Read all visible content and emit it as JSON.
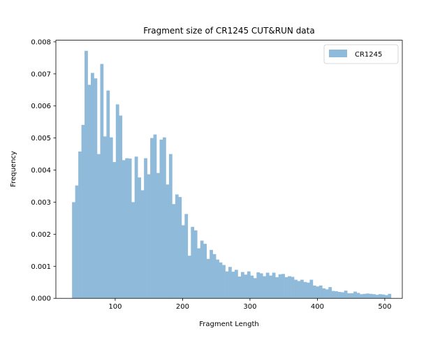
{
  "chart_data": {
    "type": "histogram",
    "title": "Fragment size of CR1245 CUT&RUN data",
    "xlabel": "Fragment Length",
    "ylabel": "Frequency",
    "xlim": [
      12,
      526
    ],
    "ylim": [
      0,
      0.00805
    ],
    "xticks": [
      100,
      200,
      300,
      400,
      500
    ],
    "xtick_labels": [
      "100",
      "200",
      "300",
      "400",
      "500"
    ],
    "yticks": [
      0,
      0.001,
      0.002,
      0.003,
      0.004,
      0.005,
      0.006,
      0.007,
      0.008
    ],
    "ytick_labels": [
      "0.000",
      "0.001",
      "0.002",
      "0.003",
      "0.004",
      "0.005",
      "0.006",
      "0.007",
      "0.008"
    ],
    "bin_start": 36,
    "bin_width": 4.64,
    "bar_color": "#8fbad9",
    "legend": {
      "position": "upper right",
      "entries": [
        "CR1245"
      ]
    },
    "series": [
      {
        "name": "CR1245",
        "values": [
          0.003,
          0.00352,
          0.00458,
          0.00541,
          0.00772,
          0.00666,
          0.00703,
          0.00686,
          0.0045,
          0.00731,
          0.00505,
          0.00648,
          0.00502,
          0.00425,
          0.00605,
          0.0057,
          0.00431,
          0.00437,
          0.00436,
          0.003,
          0.00442,
          0.00377,
          0.00337,
          0.00437,
          0.00387,
          0.005,
          0.00511,
          0.00391,
          0.00495,
          0.00502,
          0.00355,
          0.0045,
          0.00294,
          0.00324,
          0.00316,
          0.00228,
          0.00263,
          0.00133,
          0.00223,
          0.00212,
          0.00156,
          0.0018,
          0.0017,
          0.00123,
          0.00151,
          0.00138,
          0.00121,
          0.00112,
          0.00104,
          0.00084,
          0.00098,
          0.00083,
          0.00089,
          0.00068,
          0.00082,
          0.00074,
          0.00084,
          0.00071,
          0.00063,
          0.00081,
          0.00078,
          0.00069,
          0.0008,
          0.00071,
          0.0008,
          0.00066,
          0.00075,
          0.00076,
          0.00066,
          0.00069,
          0.00067,
          0.00058,
          0.00054,
          0.00058,
          0.00051,
          0.00049,
          0.00058,
          0.0004,
          0.00037,
          0.0004,
          0.00031,
          0.00028,
          0.00035,
          0.00023,
          0.00022,
          0.0002,
          0.00019,
          0.00024,
          0.00016,
          0.00016,
          0.00021,
          0.00017,
          0.00013,
          0.00014,
          0.00015,
          0.00014,
          0.00013,
          0.00011,
          0.00013,
          0.00012,
          0.0001,
          0.00014
        ]
      }
    ]
  }
}
